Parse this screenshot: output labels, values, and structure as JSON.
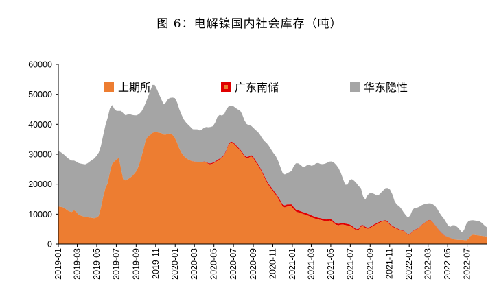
{
  "chart_data": {
    "type": "area",
    "stacked": true,
    "title": "图 6：电解镍国内社会库存（吨）",
    "xlabel": "",
    "ylabel": "",
    "ylim": [
      0,
      60000
    ],
    "yticks": [
      0,
      10000,
      20000,
      30000,
      40000,
      50000,
      60000
    ],
    "x_start": "2019-01-01",
    "x_end": "2022-09-02",
    "x_tick_labels": [
      "2019-01",
      "2019-03",
      "2019-05",
      "2019-07",
      "2019-09",
      "2019-11",
      "2020-01",
      "2020-03",
      "2020-05",
      "2020-07",
      "2020-09",
      "2020-11",
      "2021-01",
      "2021-03",
      "2021-05",
      "2021-07",
      "2021-09",
      "2021-11",
      "2022-01",
      "2022-03",
      "2022-05",
      "2022-07"
    ],
    "grid": false,
    "legend_position": "top",
    "series": [
      {
        "name": "上期所",
        "color": "#ED7D31",
        "points": [
          [
            "2019-01-04",
            12500
          ],
          [
            "2019-01-18",
            12200
          ],
          [
            "2019-02-01",
            11000
          ],
          [
            "2019-02-15",
            10600
          ],
          [
            "2019-02-22",
            11800
          ],
          [
            "2019-03-01",
            10000
          ],
          [
            "2019-03-15",
            9400
          ],
          [
            "2019-03-29",
            9000
          ],
          [
            "2019-04-12",
            8800
          ],
          [
            "2019-04-26",
            8600
          ],
          [
            "2019-05-10",
            9600
          ],
          [
            "2019-05-17",
            14000
          ],
          [
            "2019-05-24",
            17000
          ],
          [
            "2019-05-31",
            20000
          ],
          [
            "2019-06-07",
            20500
          ],
          [
            "2019-06-14",
            26500
          ],
          [
            "2019-06-21",
            27000
          ],
          [
            "2019-06-28",
            28000
          ],
          [
            "2019-07-05",
            28500
          ],
          [
            "2019-07-12",
            29000
          ],
          [
            "2019-07-19",
            22000
          ],
          [
            "2019-07-26",
            21000
          ],
          [
            "2019-08-02",
            21500
          ],
          [
            "2019-08-09",
            21800
          ],
          [
            "2019-08-23",
            23000
          ],
          [
            "2019-09-06",
            25000
          ],
          [
            "2019-09-20",
            30000
          ],
          [
            "2019-10-04",
            36000
          ],
          [
            "2019-10-11",
            36000
          ],
          [
            "2019-10-25",
            37500
          ],
          [
            "2019-11-08",
            37300
          ],
          [
            "2019-11-22",
            37000
          ],
          [
            "2019-11-29",
            36300
          ],
          [
            "2019-12-06",
            36800
          ],
          [
            "2019-12-20",
            37000
          ],
          [
            "2020-01-03",
            35000
          ],
          [
            "2020-01-17",
            31000
          ],
          [
            "2020-01-31",
            29000
          ],
          [
            "2020-02-14",
            28000
          ],
          [
            "2020-02-28",
            27500
          ],
          [
            "2020-03-06",
            27500
          ],
          [
            "2020-03-20",
            27200
          ],
          [
            "2020-04-03",
            27500
          ],
          [
            "2020-04-17",
            26500
          ],
          [
            "2020-05-01",
            27000
          ],
          [
            "2020-05-15",
            28000
          ],
          [
            "2020-05-29",
            29000
          ],
          [
            "2020-06-05",
            30000
          ],
          [
            "2020-06-12",
            32000
          ],
          [
            "2020-06-19",
            34000
          ],
          [
            "2020-06-26",
            33800
          ],
          [
            "2020-07-03",
            33500
          ],
          [
            "2020-07-10",
            32500
          ],
          [
            "2020-07-24",
            31000
          ],
          [
            "2020-08-07",
            28800
          ],
          [
            "2020-08-14",
            28600
          ],
          [
            "2020-08-28",
            29500
          ],
          [
            "2020-09-04",
            28000
          ],
          [
            "2020-09-18",
            26000
          ],
          [
            "2020-10-02",
            23000
          ],
          [
            "2020-10-16",
            20000
          ],
          [
            "2020-10-30",
            18000
          ],
          [
            "2020-11-13",
            16000
          ],
          [
            "2020-11-27",
            13500
          ],
          [
            "2020-12-04",
            12000
          ],
          [
            "2020-12-11",
            12400
          ],
          [
            "2020-12-18",
            12600
          ],
          [
            "2020-12-25",
            12500
          ],
          [
            "2021-01-01",
            12600
          ],
          [
            "2021-01-08",
            11000
          ],
          [
            "2021-01-22",
            10500
          ],
          [
            "2021-02-05",
            10000
          ],
          [
            "2021-02-19",
            9500
          ],
          [
            "2021-03-05",
            8800
          ],
          [
            "2021-03-19",
            8300
          ],
          [
            "2021-04-02",
            8000
          ],
          [
            "2021-04-16",
            7600
          ],
          [
            "2021-04-30",
            7900
          ],
          [
            "2021-05-07",
            7500
          ],
          [
            "2021-05-14",
            6500
          ],
          [
            "2021-05-28",
            6200
          ],
          [
            "2021-06-04",
            6600
          ],
          [
            "2021-06-18",
            6300
          ],
          [
            "2021-07-02",
            6000
          ],
          [
            "2021-07-16",
            4800
          ],
          [
            "2021-07-23",
            4400
          ],
          [
            "2021-07-30",
            4900
          ],
          [
            "2021-08-06",
            6500
          ],
          [
            "2021-08-13",
            5500
          ],
          [
            "2021-08-27",
            5000
          ],
          [
            "2021-09-10",
            6000
          ],
          [
            "2021-09-24",
            6800
          ],
          [
            "2021-10-08",
            7500
          ],
          [
            "2021-10-22",
            7700
          ],
          [
            "2021-11-05",
            6000
          ],
          [
            "2021-11-19",
            5300
          ],
          [
            "2021-12-03",
            4600
          ],
          [
            "2021-12-17",
            4200
          ],
          [
            "2021-12-31",
            2700
          ],
          [
            "2022-01-14",
            4500
          ],
          [
            "2022-01-28",
            5000
          ],
          [
            "2022-02-11",
            6500
          ],
          [
            "2022-02-25",
            7500
          ],
          [
            "2022-03-04",
            8200
          ],
          [
            "2022-03-11",
            7800
          ],
          [
            "2022-03-25",
            6000
          ],
          [
            "2022-04-08",
            4000
          ],
          [
            "2022-04-22",
            2700
          ],
          [
            "2022-05-06",
            2200
          ],
          [
            "2022-05-20",
            1600
          ],
          [
            "2022-06-03",
            1400
          ],
          [
            "2022-06-17",
            1400
          ],
          [
            "2022-07-01",
            1200
          ],
          [
            "2022-07-15",
            3200
          ],
          [
            "2022-07-29",
            3000
          ],
          [
            "2022-08-12",
            2800
          ],
          [
            "2022-08-26",
            2600
          ],
          [
            "2022-09-02",
            2500
          ]
        ]
      },
      {
        "name": "广东南储",
        "color": "#E00000",
        "points": [
          [
            "2019-01-04",
            0
          ],
          [
            "2019-12-20",
            0
          ],
          [
            "2020-02-14",
            0
          ],
          [
            "2020-03-20",
            100
          ],
          [
            "2020-04-03",
            150
          ],
          [
            "2020-04-17",
            300
          ],
          [
            "2020-05-01",
            300
          ],
          [
            "2020-06-12",
            300
          ],
          [
            "2020-07-03",
            350
          ],
          [
            "2020-08-07",
            400
          ],
          [
            "2020-09-04",
            450
          ],
          [
            "2020-10-02",
            450
          ],
          [
            "2020-11-13",
            500
          ],
          [
            "2020-12-04",
            650
          ],
          [
            "2021-01-01",
            700
          ],
          [
            "2021-02-05",
            600
          ],
          [
            "2021-03-05",
            600
          ],
          [
            "2021-04-16",
            550
          ],
          [
            "2021-05-07",
            500
          ],
          [
            "2021-06-04",
            500
          ],
          [
            "2021-07-02",
            450
          ],
          [
            "2021-08-06",
            400
          ],
          [
            "2021-09-10",
            350
          ],
          [
            "2021-10-08",
            300
          ],
          [
            "2021-11-05",
            300
          ],
          [
            "2021-12-03",
            200
          ],
          [
            "2022-01-14",
            150
          ],
          [
            "2022-03-04",
            100
          ],
          [
            "2022-04-08",
            100
          ],
          [
            "2022-05-06",
            50
          ],
          [
            "2022-06-03",
            0
          ],
          [
            "2022-09-02",
            0
          ]
        ]
      },
      {
        "name": "华东隐性",
        "color": "#A5A5A5",
        "points": [
          [
            "2019-01-04",
            18500
          ],
          [
            "2019-01-18",
            17800
          ],
          [
            "2019-02-01",
            17500
          ],
          [
            "2019-02-15",
            17100
          ],
          [
            "2019-02-22",
            16200
          ],
          [
            "2019-03-01",
            17200
          ],
          [
            "2019-03-15",
            17400
          ],
          [
            "2019-03-29",
            17600
          ],
          [
            "2019-04-12",
            19000
          ],
          [
            "2019-04-26",
            20200
          ],
          [
            "2019-05-10",
            21400
          ],
          [
            "2019-05-17",
            20000
          ],
          [
            "2019-05-24",
            21000
          ],
          [
            "2019-05-31",
            21000
          ],
          [
            "2019-06-07",
            22500
          ],
          [
            "2019-06-14",
            20500
          ],
          [
            "2019-06-21",
            19000
          ],
          [
            "2019-06-28",
            16500
          ],
          [
            "2019-07-05",
            16000
          ],
          [
            "2019-07-12",
            15500
          ],
          [
            "2019-07-19",
            22500
          ],
          [
            "2019-07-26",
            22000
          ],
          [
            "2019-08-02",
            21500
          ],
          [
            "2019-08-09",
            21700
          ],
          [
            "2019-08-23",
            20000
          ],
          [
            "2019-09-06",
            18000
          ],
          [
            "2019-09-20",
            14500
          ],
          [
            "2019-10-04",
            12000
          ],
          [
            "2019-10-11",
            14000
          ],
          [
            "2019-10-25",
            16500
          ],
          [
            "2019-11-08",
            13700
          ],
          [
            "2019-11-22",
            10500
          ],
          [
            "2019-11-29",
            9700
          ],
          [
            "2019-12-06",
            11500
          ],
          [
            "2019-12-20",
            12000
          ],
          [
            "2020-01-03",
            13700
          ],
          [
            "2020-01-17",
            13000
          ],
          [
            "2020-01-31",
            12000
          ],
          [
            "2020-02-14",
            11500
          ],
          [
            "2020-02-28",
            10500
          ],
          [
            "2020-03-06",
            11000
          ],
          [
            "2020-03-20",
            10500
          ],
          [
            "2020-04-03",
            11500
          ],
          [
            "2020-04-17",
            12200
          ],
          [
            "2020-05-01",
            12200
          ],
          [
            "2020-05-15",
            15000
          ],
          [
            "2020-05-29",
            13500
          ],
          [
            "2020-06-05",
            13500
          ],
          [
            "2020-06-12",
            13700
          ],
          [
            "2020-06-19",
            11700
          ],
          [
            "2020-06-26",
            12000
          ],
          [
            "2020-07-03",
            12200
          ],
          [
            "2020-07-10",
            12300
          ],
          [
            "2020-07-24",
            13200
          ],
          [
            "2020-08-07",
            11300
          ],
          [
            "2020-08-14",
            10800
          ],
          [
            "2020-08-28",
            9500
          ],
          [
            "2020-09-04",
            10000
          ],
          [
            "2020-09-18",
            10800
          ],
          [
            "2020-10-02",
            11300
          ],
          [
            "2020-10-16",
            13000
          ],
          [
            "2020-10-30",
            12500
          ],
          [
            "2020-11-13",
            12500
          ],
          [
            "2020-11-27",
            11000
          ],
          [
            "2020-12-04",
            10300
          ],
          [
            "2020-12-11",
            10400
          ],
          [
            "2020-12-18",
            10400
          ],
          [
            "2020-12-25",
            11000
          ],
          [
            "2021-01-01",
            11200
          ],
          [
            "2021-01-08",
            15300
          ],
          [
            "2021-01-22",
            15800
          ],
          [
            "2021-02-05",
            14900
          ],
          [
            "2021-02-19",
            16500
          ],
          [
            "2021-03-05",
            16600
          ],
          [
            "2021-03-19",
            18400
          ],
          [
            "2021-04-02",
            18000
          ],
          [
            "2021-04-16",
            18800
          ],
          [
            "2021-04-30",
            19300
          ],
          [
            "2021-05-07",
            19500
          ],
          [
            "2021-05-14",
            20000
          ],
          [
            "2021-05-28",
            18300
          ],
          [
            "2021-06-04",
            15900
          ],
          [
            "2021-06-18",
            12200
          ],
          [
            "2021-07-02",
            15500
          ],
          [
            "2021-07-16",
            15700
          ],
          [
            "2021-07-23",
            15100
          ],
          [
            "2021-07-30",
            13600
          ],
          [
            "2021-08-06",
            11600
          ],
          [
            "2021-08-13",
            8100
          ],
          [
            "2021-08-27",
            11650
          ],
          [
            "2021-09-10",
            10650
          ],
          [
            "2021-09-24",
            8900
          ],
          [
            "2021-10-08",
            9700
          ],
          [
            "2021-10-22",
            11000
          ],
          [
            "2021-11-05",
            11700
          ],
          [
            "2021-11-19",
            7900
          ],
          [
            "2021-12-03",
            7700
          ],
          [
            "2021-12-17",
            5800
          ],
          [
            "2021-12-31",
            5600
          ],
          [
            "2022-01-14",
            7500
          ],
          [
            "2022-01-28",
            7000
          ],
          [
            "2022-02-11",
            6500
          ],
          [
            "2022-02-25",
            5900
          ],
          [
            "2022-03-04",
            5300
          ],
          [
            "2022-03-11",
            5700
          ],
          [
            "2022-03-25",
            6500
          ],
          [
            "2022-04-08",
            5900
          ],
          [
            "2022-04-22",
            5300
          ],
          [
            "2022-05-06",
            3250
          ],
          [
            "2022-05-20",
            4900
          ],
          [
            "2022-06-03",
            4100
          ],
          [
            "2022-06-17",
            2100
          ],
          [
            "2022-07-01",
            6300
          ],
          [
            "2022-07-15",
            4800
          ],
          [
            "2022-07-29",
            4800
          ],
          [
            "2022-08-12",
            4700
          ],
          [
            "2022-08-26",
            3400
          ],
          [
            "2022-09-02",
            3000
          ]
        ]
      }
    ]
  }
}
